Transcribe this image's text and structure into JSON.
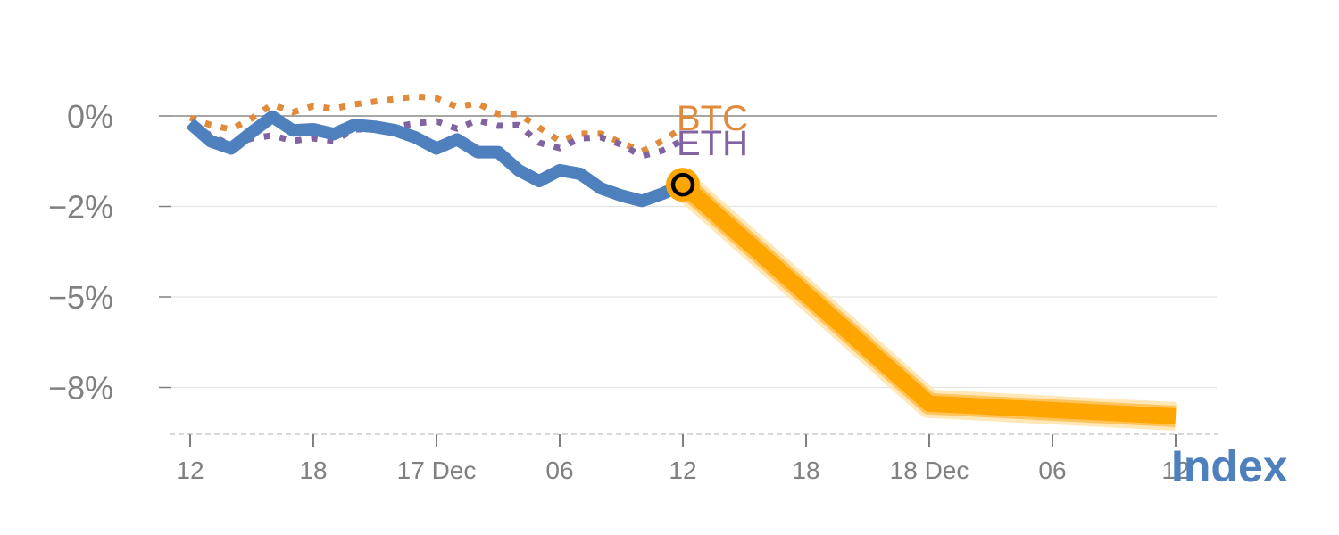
{
  "chart_data": {
    "type": "line",
    "title": "",
    "xlabel": "",
    "ylabel": "",
    "ylim": [
      -8.9,
      2.0
    ],
    "yticks": [
      0,
      -2.5,
      -5,
      -7.5
    ],
    "ytick_labels": [
      "0%",
      "−2%",
      "−5%",
      "−8%"
    ],
    "x_unit": "hours since 16 Dec 12:00",
    "xlim": [
      0,
      48
    ],
    "xticks": [
      0,
      6,
      12,
      18,
      24,
      30,
      36,
      42,
      48
    ],
    "xtick_labels": [
      "12",
      "18",
      "17 Dec",
      "06",
      "12",
      "18",
      "18 Dec",
      "06",
      "12"
    ],
    "grid": "horizontal",
    "zero_line": true,
    "series": [
      {
        "name": "BTC",
        "style": "dotted",
        "color": "#e08a3a",
        "label": "BTC",
        "x": [
          0,
          1,
          2,
          3,
          4,
          5,
          6,
          7,
          8,
          9,
          10,
          11,
          12,
          13,
          14,
          15,
          16,
          17,
          18,
          19,
          20,
          21,
          22,
          23,
          24
        ],
        "values": [
          -0.05,
          -0.25,
          -0.37,
          -0.07,
          0.32,
          0.1,
          0.27,
          0.2,
          0.32,
          0.4,
          0.47,
          0.54,
          0.49,
          0.25,
          0.35,
          0.05,
          0.05,
          -0.32,
          -0.69,
          -0.49,
          -0.49,
          -0.74,
          -0.98,
          -0.69,
          -0.32
        ]
      },
      {
        "name": "ETH",
        "style": "dotted",
        "color": "#8064a2",
        "label": "ETH",
        "x": [
          0,
          1,
          2,
          3,
          4,
          5,
          6,
          7,
          8,
          9,
          10,
          11,
          12,
          13,
          14,
          15,
          16,
          17,
          18,
          19,
          20,
          21,
          22,
          23,
          24
        ],
        "values": [
          -0.22,
          -0.54,
          -0.81,
          -0.62,
          -0.54,
          -0.69,
          -0.62,
          -0.69,
          -0.37,
          -0.37,
          -0.3,
          -0.2,
          -0.15,
          -0.35,
          -0.12,
          -0.27,
          -0.25,
          -0.74,
          -0.89,
          -0.62,
          -0.59,
          -0.79,
          -1.11,
          -0.96,
          -0.67
        ]
      },
      {
        "name": "Index",
        "style": "solid",
        "color": "#4e80bd",
        "label": "Index",
        "x": [
          0,
          1,
          2,
          3,
          4,
          5,
          6,
          7,
          8,
          9,
          10,
          11,
          12,
          13,
          14,
          15,
          16,
          17,
          18,
          19,
          20,
          21,
          22,
          23,
          24
        ],
        "values": [
          -0.2,
          -0.7,
          -0.9,
          -0.45,
          -0.02,
          -0.4,
          -0.37,
          -0.5,
          -0.25,
          -0.3,
          -0.4,
          -0.6,
          -0.9,
          -0.65,
          -1.0,
          -1.0,
          -1.5,
          -1.8,
          -1.5,
          -1.6,
          -2.0,
          -2.2,
          -2.35,
          -2.15,
          -1.9
        ]
      },
      {
        "name": "Index forecast",
        "style": "thick-highlight",
        "color": "#ffa500",
        "x": [
          24,
          36,
          48
        ],
        "values": [
          -1.9,
          -7.95,
          -8.3
        ]
      }
    ],
    "marker": {
      "series": "Index",
      "x": 24,
      "value": -1.9,
      "fill": "#ffa500",
      "ring": "#000000"
    },
    "annotations": [
      "BTC",
      "ETH",
      "Index"
    ]
  }
}
